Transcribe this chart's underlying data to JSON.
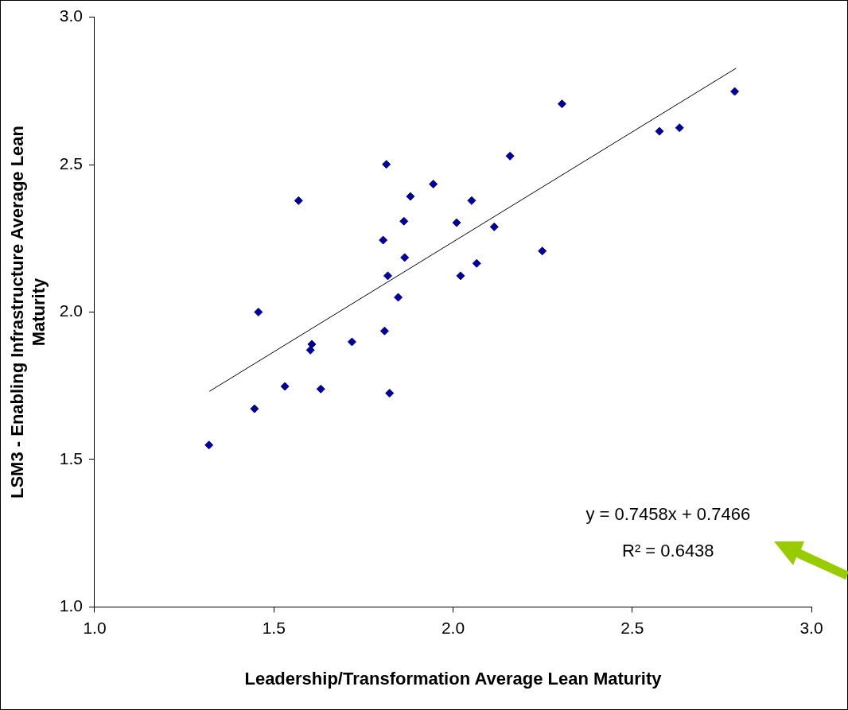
{
  "chart_data": {
    "type": "scatter",
    "xlabel": "Leadership/Transformation Average Lean Maturity",
    "ylabel": "LSM3 - Enabling Infrastructure Average Lean Maturity",
    "xlim": [
      1,
      3
    ],
    "ylim": [
      1,
      3
    ],
    "xticks": [
      {
        "value": 1,
        "label": "1.0"
      },
      {
        "value": 1.5,
        "label": "1.5"
      },
      {
        "value": 2,
        "label": "2.0"
      },
      {
        "value": 2.5,
        "label": "2.5"
      },
      {
        "value": 3,
        "label": "3.0"
      }
    ],
    "yticks": [
      {
        "value": 1,
        "label": "1.0"
      },
      {
        "value": 1.5,
        "label": "1.5"
      },
      {
        "value": 2,
        "label": "2.0"
      },
      {
        "value": 2.5,
        "label": "2.5"
      },
      {
        "value": 3,
        "label": "3.0"
      }
    ],
    "grid": false,
    "legend": false,
    "marker": "diamond",
    "series": [
      {
        "color": "#000099",
        "x": [
          1.319,
          1.446,
          1.457,
          1.531,
          1.569,
          1.602,
          1.606,
          1.631,
          1.718,
          1.805,
          1.809,
          1.814,
          1.818,
          1.823,
          1.847,
          1.863,
          1.881,
          1.865,
          1.945,
          2.01,
          2.021,
          2.052,
          2.066,
          2.115,
          2.159,
          2.249,
          2.304,
          2.576,
          2.632,
          2.786
        ],
        "values": [
          1.549,
          1.672,
          2.0,
          1.748,
          2.378,
          1.871,
          1.891,
          1.739,
          1.899,
          2.244,
          1.936,
          2.501,
          2.123,
          1.725,
          2.05,
          2.308,
          2.392,
          2.185,
          2.434,
          2.303,
          2.123,
          2.378,
          2.165,
          2.289,
          2.529,
          2.207,
          2.706,
          2.613,
          2.625,
          2.748
        ]
      },
      {
        "type": "line",
        "color": "#000000",
        "marker": "none",
        "x": [
          1.32,
          2.79
        ],
        "values": [
          1.731,
          2.827
        ]
      }
    ],
    "annotations": [
      "y = 0.7458x + 0.7466",
      "R² = 0.6438"
    ]
  }
}
